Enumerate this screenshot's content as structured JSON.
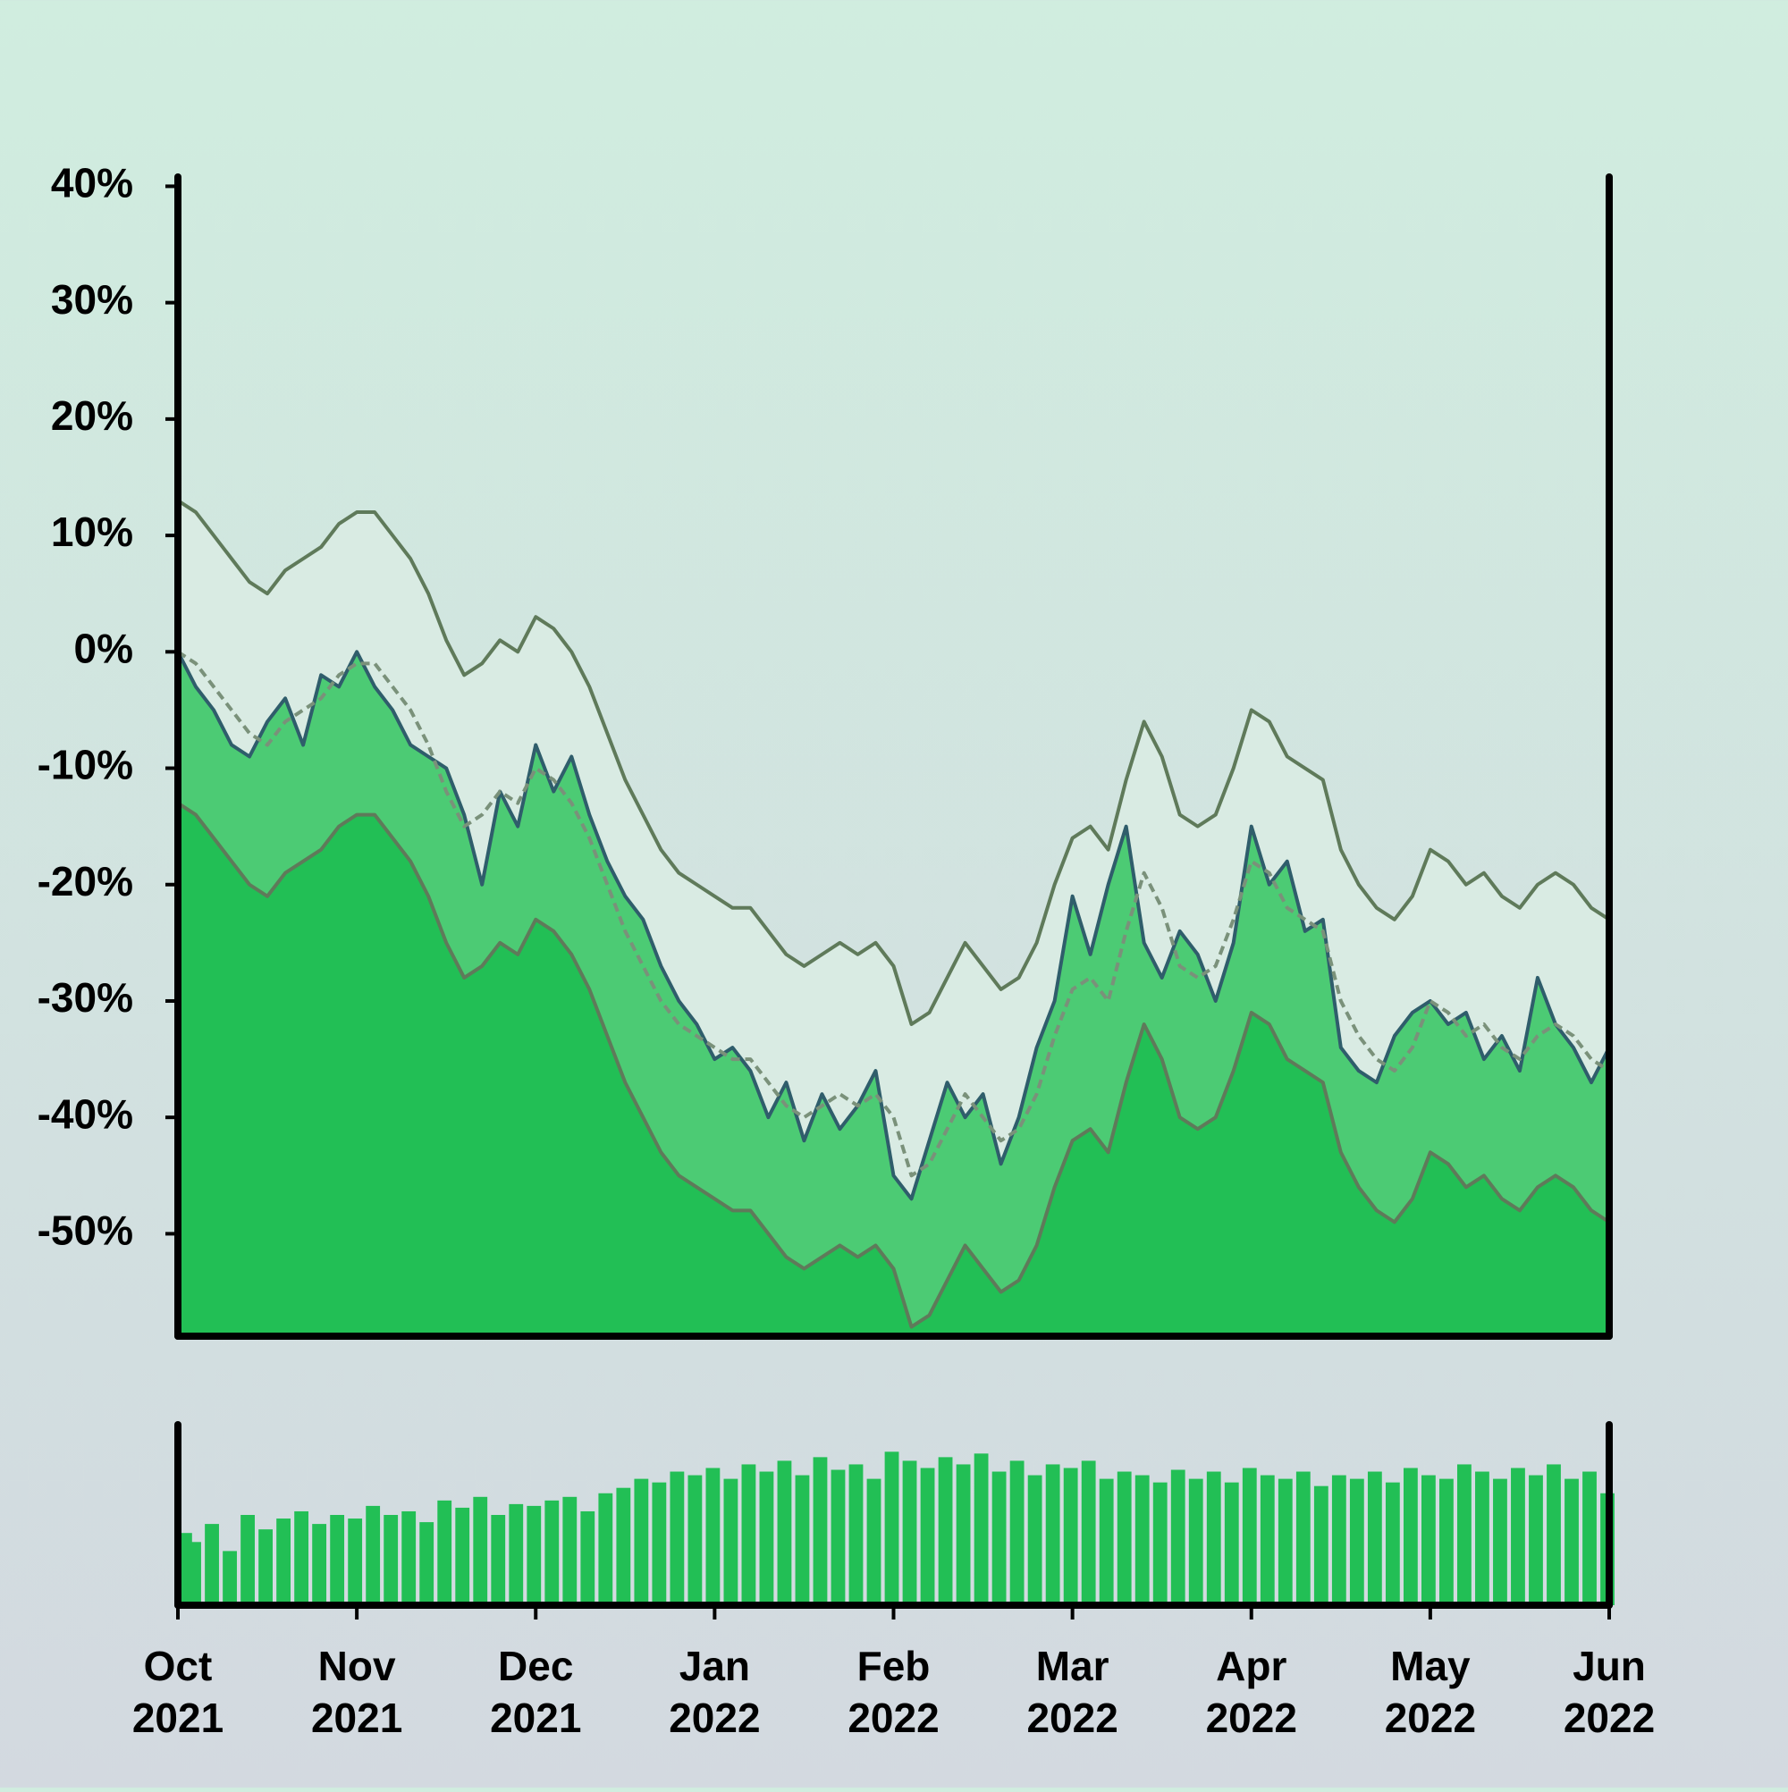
{
  "chart_data": {
    "type": "line",
    "x": [
      0,
      0.1,
      0.2,
      0.3,
      0.4,
      0.5,
      0.6,
      0.7,
      0.8,
      0.9,
      1,
      1.1,
      1.2,
      1.3,
      1.4,
      1.5,
      1.6,
      1.7,
      1.8,
      1.9,
      2,
      2.1,
      2.2,
      2.3,
      2.4,
      2.5,
      2.6,
      2.7,
      2.8,
      2.9,
      3,
      3.1,
      3.2,
      3.3,
      3.4,
      3.5,
      3.6,
      3.7,
      3.8,
      3.9,
      4,
      4.1,
      4.2,
      4.3,
      4.4,
      4.5,
      4.6,
      4.7,
      4.8,
      4.9,
      5,
      5.1,
      5.2,
      5.3,
      5.4,
      5.5,
      5.6,
      5.7,
      5.8,
      5.9,
      6,
      6.1,
      6.2,
      6.3,
      6.4,
      6.5,
      6.6,
      6.7,
      6.8,
      6.9,
      7,
      7.1,
      7.2,
      7.3,
      7.4,
      7.5,
      7.6,
      7.7,
      7.8,
      7.9,
      8
    ],
    "xlim": [
      0,
      8
    ],
    "xticks": [
      {
        "value": 0,
        "label": [
          "Oct",
          "2021"
        ]
      },
      {
        "value": 1,
        "label": [
          "Nov",
          "2021"
        ]
      },
      {
        "value": 2,
        "label": [
          "Dec",
          "2021"
        ]
      },
      {
        "value": 3,
        "label": [
          "Jan",
          "2022"
        ]
      },
      {
        "value": 4,
        "label": [
          "Feb",
          "2022"
        ]
      },
      {
        "value": 5,
        "label": [
          "Mar",
          "2022"
        ]
      },
      {
        "value": 6,
        "label": [
          "Apr",
          "2022"
        ]
      },
      {
        "value": 7,
        "label": [
          "May",
          "2022"
        ]
      },
      {
        "value": 8,
        "label": [
          "Jun",
          "2022"
        ]
      }
    ],
    "ylim": [
      -58.8,
      40.8
    ],
    "yticks": [
      {
        "value": -50,
        "label": "-50%"
      },
      {
        "value": -40,
        "label": "-40%"
      },
      {
        "value": -30,
        "label": "-30%"
      },
      {
        "value": -20,
        "label": "-20%"
      },
      {
        "value": -10,
        "label": "-10%"
      },
      {
        "value": 0,
        "label": "0%"
      },
      {
        "value": 10,
        "label": "10%"
      },
      {
        "value": 20,
        "label": "20%"
      },
      {
        "value": 30,
        "label": "30%"
      },
      {
        "value": 40,
        "label": "40%"
      }
    ],
    "series": [
      {
        "color": "#5f7a5a",
        "fill": "#d9ebe3",
        "dashed": false,
        "width": 4,
        "values": [
          13,
          12,
          10,
          8,
          6,
          5,
          7,
          8,
          9,
          11,
          12,
          12,
          10,
          8,
          5,
          1,
          -2,
          -1,
          1,
          0,
          3,
          2,
          0,
          -3,
          -7,
          -11,
          -14,
          -17,
          -19,
          -20,
          -21,
          -22,
          -22,
          -24,
          -26,
          -27,
          -26,
          -25,
          -26,
          -25,
          -27,
          -32,
          -31,
          -28,
          -25,
          -27,
          -29,
          -28,
          -25,
          -20,
          -16,
          -15,
          -17,
          -11,
          -6,
          -9,
          -14,
          -15,
          -14,
          -10,
          -5,
          -6,
          -9,
          -10,
          -11,
          -17,
          -20,
          -22,
          -23,
          -21,
          -17,
          -18,
          -20,
          -19,
          -21,
          -22,
          -20,
          -19,
          -20,
          -22,
          -23
        ]
      },
      {
        "color": "#2f5d6b",
        "fill": "#4ccb74",
        "dashed": false,
        "width": 4,
        "values": [
          0,
          -3,
          -5,
          -8,
          -9,
          -6,
          -4,
          -8,
          -2,
          -3,
          0,
          -3,
          -5,
          -8,
          -9,
          -10,
          -14,
          -20,
          -12,
          -15,
          -8,
          -12,
          -9,
          -14,
          -18,
          -21,
          -23,
          -27,
          -30,
          -32,
          -35,
          -34,
          -36,
          -40,
          -37,
          -42,
          -38,
          -41,
          -39,
          -36,
          -45,
          -47,
          -42,
          -37,
          -40,
          -38,
          -44,
          -40,
          -34,
          -30,
          -21,
          -26,
          -20,
          -15,
          -25,
          -28,
          -24,
          -26,
          -30,
          -25,
          -15,
          -20,
          -18,
          -24,
          -23,
          -34,
          -36,
          -37,
          -33,
          -31,
          -30,
          -32,
          -31,
          -35,
          -33,
          -36,
          -28,
          -32,
          -34,
          -37,
          -34
        ]
      },
      {
        "color": "#5f7a5a",
        "fill": "#22bf55",
        "dashed": false,
        "width": 4,
        "values": [
          -13,
          -14,
          -16,
          -18,
          -20,
          -21,
          -19,
          -18,
          -17,
          -15,
          -14,
          -14,
          -16,
          -18,
          -21,
          -25,
          -28,
          -27,
          -25,
          -26,
          -23,
          -24,
          -26,
          -29,
          -33,
          -37,
          -40,
          -43,
          -45,
          -46,
          -47,
          -48,
          -48,
          -50,
          -52,
          -53,
          -52,
          -51,
          -52,
          -51,
          -53,
          -58,
          -57,
          -54,
          -51,
          -53,
          -55,
          -54,
          -51,
          -46,
          -42,
          -41,
          -43,
          -37,
          -32,
          -35,
          -40,
          -41,
          -40,
          -36,
          -31,
          -32,
          -35,
          -36,
          -37,
          -43,
          -46,
          -48,
          -49,
          -47,
          -43,
          -44,
          -46,
          -45,
          -47,
          -48,
          -46,
          -45,
          -46,
          -48,
          -49
        ]
      },
      {
        "color": "#7a917a",
        "fill": null,
        "dashed": true,
        "width": 4,
        "values": [
          0,
          -1,
          -3,
          -5,
          -7,
          -8,
          -6,
          -5,
          -4,
          -2,
          -1,
          -1,
          -3,
          -5,
          -8,
          -12,
          -15,
          -14,
          -12,
          -13,
          -10,
          -11,
          -13,
          -16,
          -20,
          -24,
          -27,
          -30,
          -32,
          -33,
          -34,
          -35,
          -35,
          -37,
          -39,
          -40,
          -39,
          -38,
          -39,
          -38,
          -40,
          -45,
          -44,
          -41,
          -38,
          -40,
          -42,
          -41,
          -38,
          -33,
          -29,
          -28,
          -30,
          -24,
          -19,
          -22,
          -27,
          -28,
          -27,
          -23,
          -18,
          -19,
          -22,
          -23,
          -24,
          -30,
          -33,
          -35,
          -36,
          -34,
          -30,
          -31,
          -33,
          -32,
          -34,
          -35,
          -33,
          -32,
          -33,
          -35,
          -36
        ]
      }
    ],
    "volume": {
      "color": "#22bf55",
      "ylim": [
        0,
        100
      ],
      "values": [
        40,
        35,
        45,
        30,
        50,
        42,
        48,
        52,
        45,
        50,
        48,
        55,
        50,
        52,
        46,
        58,
        54,
        60,
        50,
        56,
        55,
        58,
        60,
        52,
        62,
        65,
        70,
        68,
        74,
        72,
        76,
        70,
        78,
        74,
        80,
        72,
        82,
        75,
        78,
        70,
        85,
        80,
        76,
        82,
        78,
        84,
        74,
        80,
        72,
        78,
        76,
        80,
        70,
        74,
        72,
        68,
        75,
        70,
        74,
        68,
        76,
        72,
        70,
        74,
        66,
        72,
        70,
        74,
        68,
        76,
        72,
        70,
        78,
        74,
        70,
        76,
        72,
        78,
        70,
        74,
        62
      ]
    }
  }
}
